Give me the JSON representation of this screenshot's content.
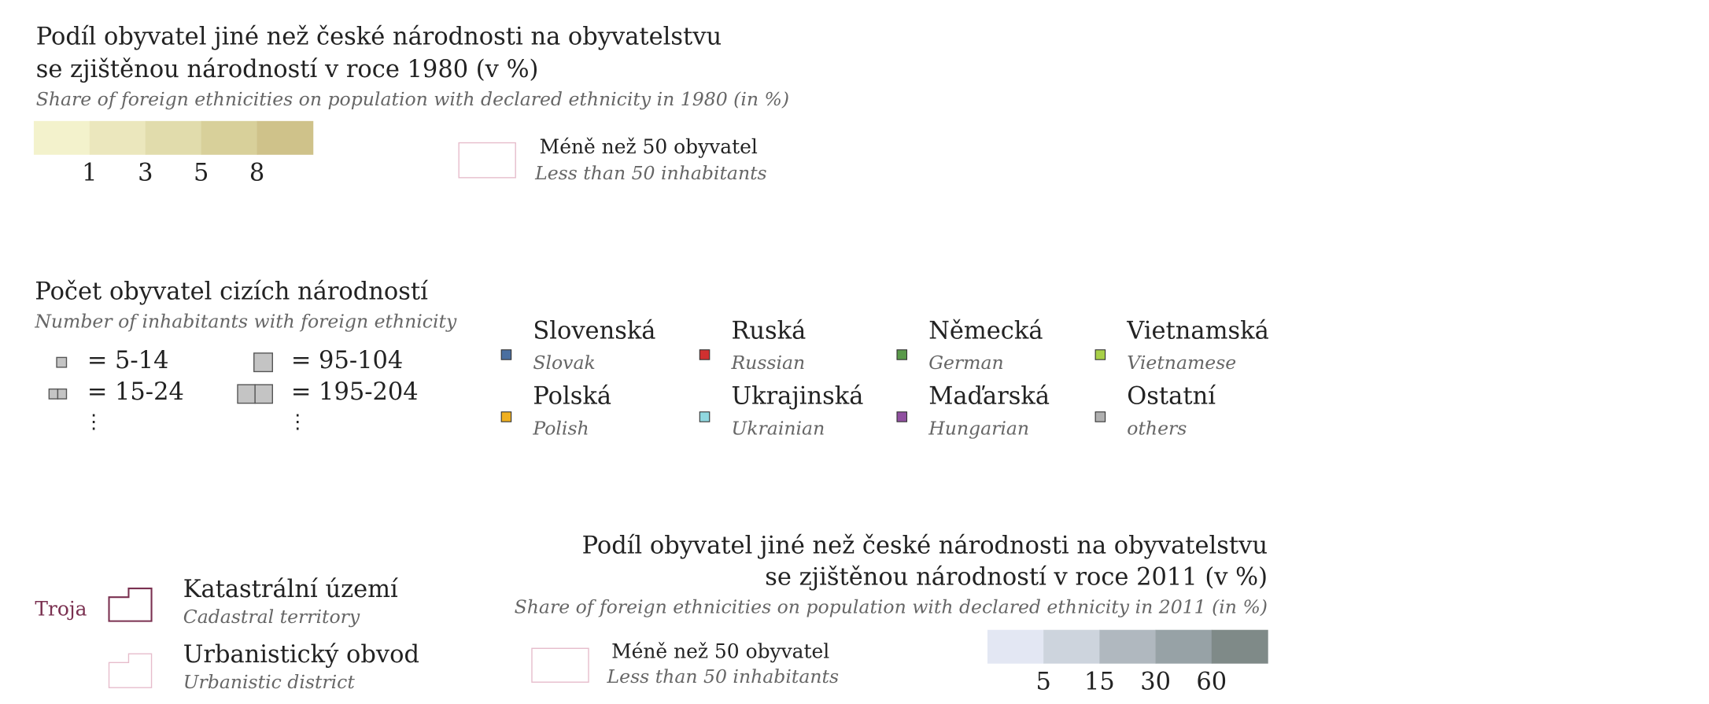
{
  "legend_1980": {
    "title_line1": "Podíl obyvatel jiné než české národnosti na obyvatelstvu",
    "title_line2": "se zjištěnou národností v roce 1980 (v %)",
    "subtitle": "Share of foreign ethnicities on population with declared ethnicity in 1980 (in %)",
    "colors": [
      "#f3f2cc",
      "#ebe7bd",
      "#e1dcac",
      "#d8d09a",
      "#cfc28a"
    ],
    "breaks": [
      1,
      3,
      5,
      8
    ],
    "note": "Méně než 50 obyvatel",
    "note_en": "Less than 50 inhabitants"
  },
  "count_legend": {
    "title": "Počet obyvatel cizích národností",
    "subtitle": "Number of inhabitants with foreign ethnicity",
    "items": [
      "= 5-14",
      "= 15-24",
      "= 95-104",
      "= 195-204"
    ],
    "ellipsis": "⋮"
  },
  "ethnicities": [
    {
      "name": "Slovenská",
      "name_en": "Slovak",
      "color": "#4a6fa0"
    },
    {
      "name": "Ruská",
      "name_en": "Russian",
      "color": "#d03030"
    },
    {
      "name": "Německá",
      "name_en": "German",
      "color": "#5a9a4a"
    },
    {
      "name": "Vietnamská",
      "name_en": "Vietnamese",
      "color": "#a8d048"
    },
    {
      "name": "Polská",
      "name_en": "Polish",
      "color": "#f0b020"
    },
    {
      "name": "Ukrajinská",
      "name_en": "Ukrainian",
      "color": "#90d8e0"
    },
    {
      "name": "Maďarská",
      "name_en": "Hungarian",
      "color": "#9050a0"
    },
    {
      "name": "Ostatní",
      "name_en": "others",
      "color": "#b0b0b0"
    }
  ],
  "boundaries": {
    "example": "Troja",
    "items": [
      {
        "name": "Katastrální území",
        "name_en": "Cadastral territory"
      },
      {
        "name": "Urbanistický obvod",
        "name_en": "Urbanistic district"
      }
    ]
  },
  "legend_2011": {
    "title_line1": "Podíl obyvatel jiné než české národnosti na obyvatelstvu",
    "title_line2": "se zjištěnou národností v roce 2011 (v %)",
    "subtitle": "Share of foreign ethnicities on population with declared ethnicity in 2011 (in %)",
    "colors": [
      "#e3e7f3",
      "#cdd4dd",
      "#b0b8bf",
      "#97a2a6",
      "#7f8a88"
    ],
    "breaks": [
      5,
      15,
      30,
      60
    ],
    "note": "Méně než 50 obyvatel",
    "note_en": "Less than 50 inhabitants"
  }
}
